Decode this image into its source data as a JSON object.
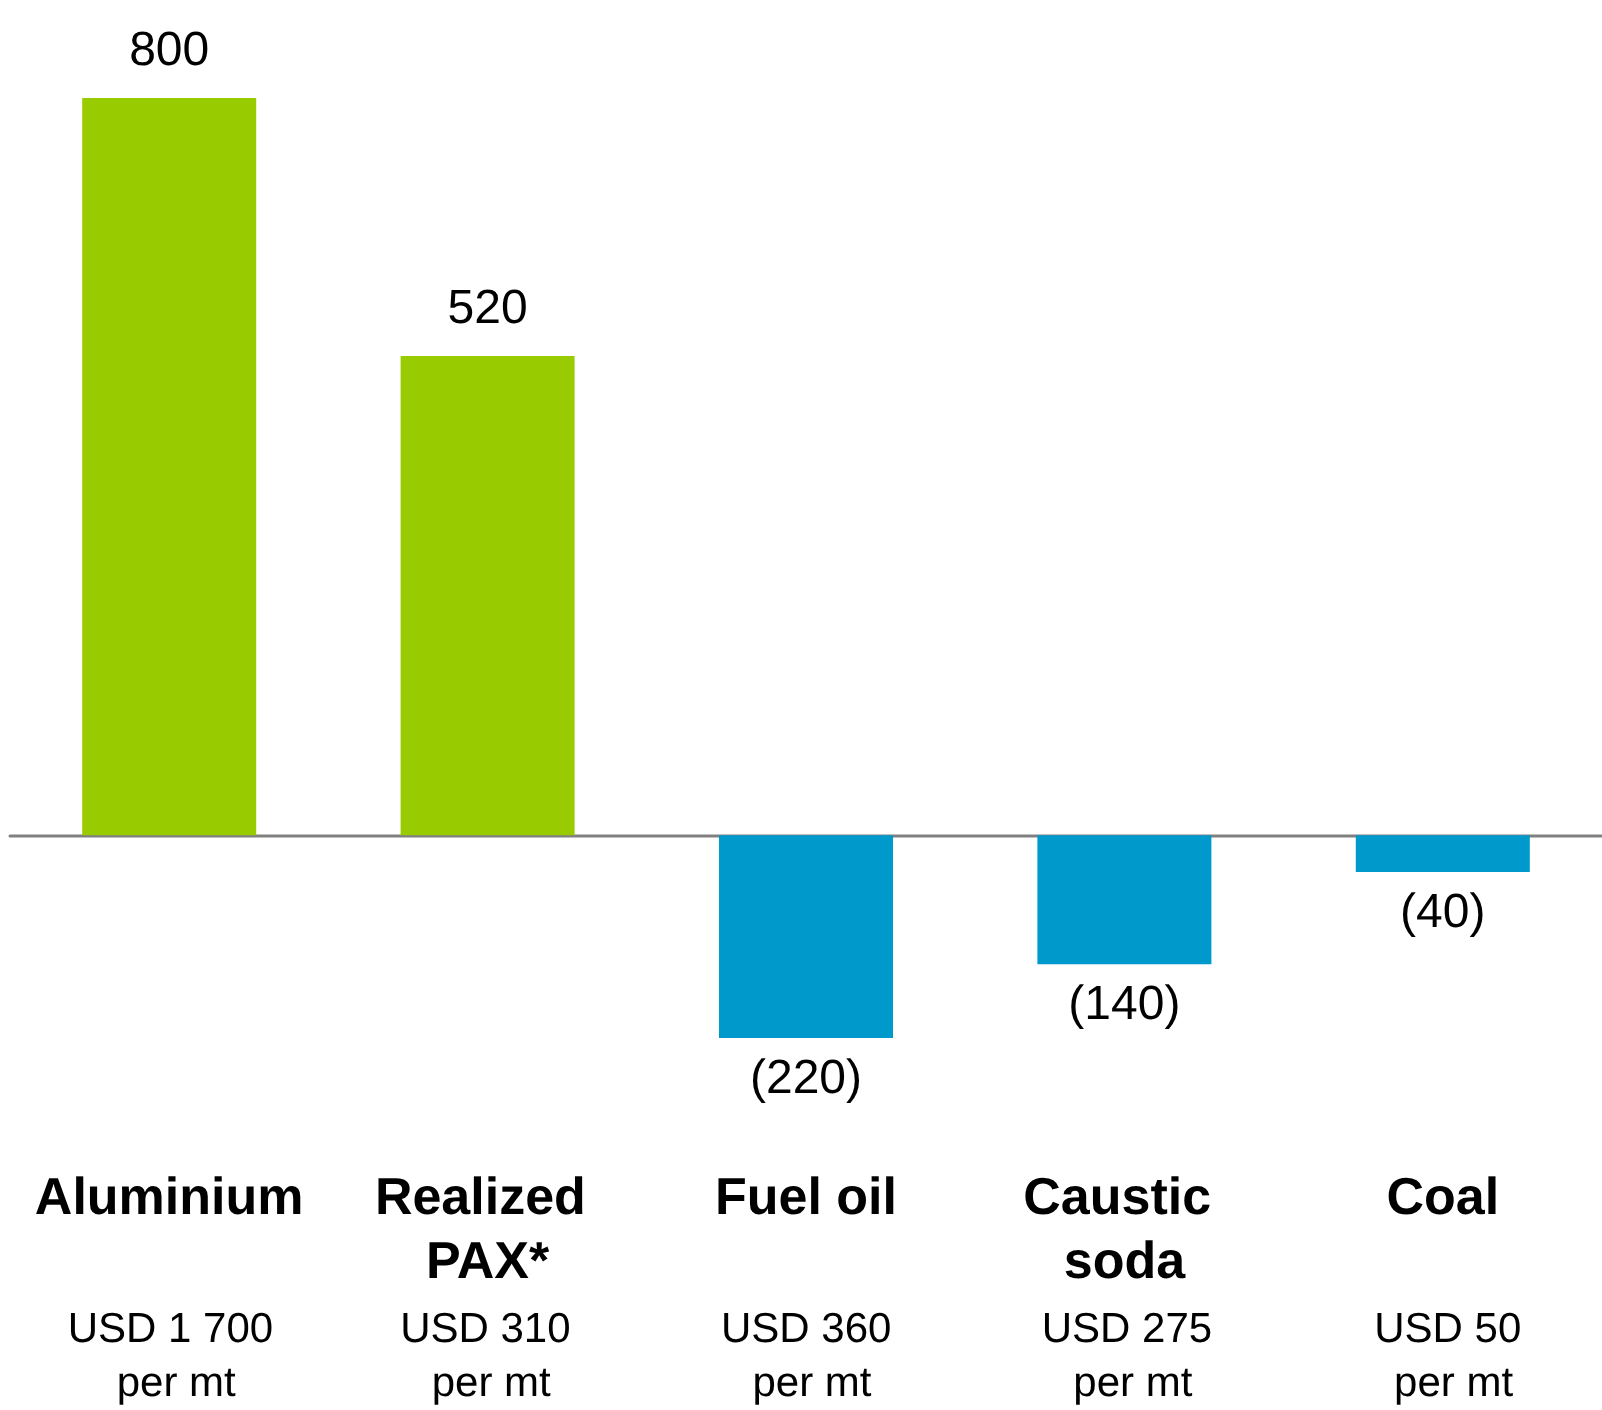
{
  "chart_data": {
    "type": "bar",
    "categories": [
      "Aluminium",
      "Realized PAX*",
      "Fuel oil",
      "Caustic soda",
      "Coal"
    ],
    "values": [
      800,
      520,
      -220,
      -140,
      -40
    ],
    "colors": [
      "#99cc00",
      "#99cc00",
      "#0099cc",
      "#0099cc",
      "#0099cc"
    ],
    "value_labels": [
      "800",
      "520",
      "(220)",
      "(140)",
      "(40)"
    ],
    "annotations": [
      "USD 1 700 per mt",
      "USD 310 per mt",
      "USD 360 per mt",
      "USD 275 per mt",
      "USD 50 per mt"
    ],
    "tick_labels": "x"
  }
}
